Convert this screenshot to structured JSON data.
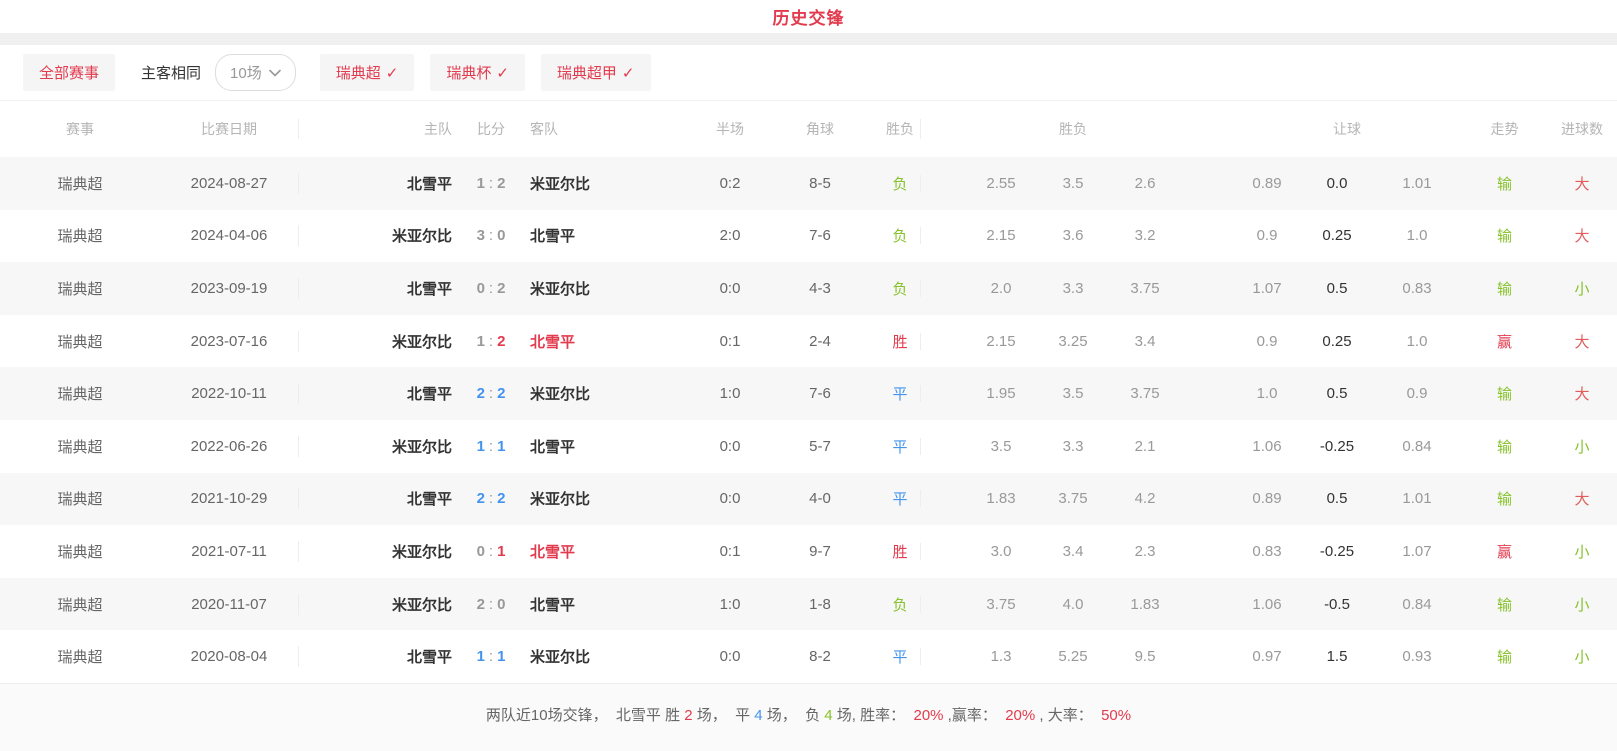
{
  "colors": {
    "accent_red": "#e23b4e",
    "draw_blue": "#4494ef",
    "lose_green": "#87c22b",
    "big_red": "#e25c5c",
    "score_gray": "#999999",
    "text_dark": "#333333",
    "text_mid": "#666666",
    "header_gray": "#b5b5b5"
  },
  "title": "历史交锋",
  "filter_bar": {
    "all_events": "全部赛事",
    "home_away_same": "主客相同",
    "match_count": "10场",
    "check_glyph": "✓",
    "league_filters": [
      "瑞典超",
      "瑞典杯",
      "瑞典超甲"
    ]
  },
  "table": {
    "headers": {
      "league": "赛事",
      "date": "比赛日期",
      "home": "主队",
      "score": "比分",
      "away": "客队",
      "half": "半场",
      "corner": "角球",
      "result": "胜负",
      "odds_group": "胜负",
      "handicap_group": "让球",
      "trend": "走势",
      "goals": "进球数"
    },
    "rows": [
      {
        "league": "瑞典超",
        "date": "2024-08-27",
        "home": {
          "name": "北雪平",
          "highlight": false
        },
        "score": {
          "home": "1",
          "sep": ":",
          "away": "2",
          "home_status": "normal",
          "away_status": "normal"
        },
        "away": {
          "name": "米亚尔比",
          "highlight": false
        },
        "half": "0:2",
        "corner": "8-5",
        "result": {
          "text": "负",
          "status": "lose"
        },
        "odds": [
          "2.55",
          "3.5",
          "2.6"
        ],
        "handicap": [
          "0.89",
          "0.0",
          "1.01"
        ],
        "trend": {
          "text": "输",
          "status": "lose"
        },
        "goals": {
          "text": "大",
          "status": "big"
        }
      },
      {
        "league": "瑞典超",
        "date": "2024-04-06",
        "home": {
          "name": "米亚尔比",
          "highlight": false
        },
        "score": {
          "home": "3",
          "sep": ":",
          "away": "0",
          "home_status": "normal",
          "away_status": "normal"
        },
        "away": {
          "name": "北雪平",
          "highlight": false
        },
        "half": "2:0",
        "corner": "7-6",
        "result": {
          "text": "负",
          "status": "lose"
        },
        "odds": [
          "2.15",
          "3.6",
          "3.2"
        ],
        "handicap": [
          "0.9",
          "0.25",
          "1.0"
        ],
        "trend": {
          "text": "输",
          "status": "lose"
        },
        "goals": {
          "text": "大",
          "status": "big"
        }
      },
      {
        "league": "瑞典超",
        "date": "2023-09-19",
        "home": {
          "name": "北雪平",
          "highlight": false
        },
        "score": {
          "home": "0",
          "sep": ":",
          "away": "2",
          "home_status": "normal",
          "away_status": "normal"
        },
        "away": {
          "name": "米亚尔比",
          "highlight": false
        },
        "half": "0:0",
        "corner": "4-3",
        "result": {
          "text": "负",
          "status": "lose"
        },
        "odds": [
          "2.0",
          "3.3",
          "3.75"
        ],
        "handicap": [
          "1.07",
          "0.5",
          "0.83"
        ],
        "trend": {
          "text": "输",
          "status": "lose"
        },
        "goals": {
          "text": "小",
          "status": "small"
        }
      },
      {
        "league": "瑞典超",
        "date": "2023-07-16",
        "home": {
          "name": "米亚尔比",
          "highlight": false
        },
        "score": {
          "home": "1",
          "sep": ":",
          "away": "2",
          "home_status": "normal",
          "away_status": "win"
        },
        "away": {
          "name": "北雪平",
          "highlight": true
        },
        "half": "0:1",
        "corner": "2-4",
        "result": {
          "text": "胜",
          "status": "win"
        },
        "odds": [
          "2.15",
          "3.25",
          "3.4"
        ],
        "handicap": [
          "0.9",
          "0.25",
          "1.0"
        ],
        "trend": {
          "text": "赢",
          "status": "win"
        },
        "goals": {
          "text": "大",
          "status": "big"
        }
      },
      {
        "league": "瑞典超",
        "date": "2022-10-11",
        "home": {
          "name": "北雪平",
          "highlight": false
        },
        "score": {
          "home": "2",
          "sep": ":",
          "away": "2",
          "home_status": "draw",
          "away_status": "draw"
        },
        "away": {
          "name": "米亚尔比",
          "highlight": false
        },
        "half": "1:0",
        "corner": "7-6",
        "result": {
          "text": "平",
          "status": "draw"
        },
        "odds": [
          "1.95",
          "3.5",
          "3.75"
        ],
        "handicap": [
          "1.0",
          "0.5",
          "0.9"
        ],
        "trend": {
          "text": "输",
          "status": "lose"
        },
        "goals": {
          "text": "大",
          "status": "big"
        }
      },
      {
        "league": "瑞典超",
        "date": "2022-06-26",
        "home": {
          "name": "米亚尔比",
          "highlight": false
        },
        "score": {
          "home": "1",
          "sep": ":",
          "away": "1",
          "home_status": "draw",
          "away_status": "draw"
        },
        "away": {
          "name": "北雪平",
          "highlight": false
        },
        "half": "0:0",
        "corner": "5-7",
        "result": {
          "text": "平",
          "status": "draw"
        },
        "odds": [
          "3.5",
          "3.3",
          "2.1"
        ],
        "handicap": [
          "1.06",
          "-0.25",
          "0.84"
        ],
        "trend": {
          "text": "输",
          "status": "lose"
        },
        "goals": {
          "text": "小",
          "status": "small"
        }
      },
      {
        "league": "瑞典超",
        "date": "2021-10-29",
        "home": {
          "name": "北雪平",
          "highlight": false
        },
        "score": {
          "home": "2",
          "sep": ":",
          "away": "2",
          "home_status": "draw",
          "away_status": "draw"
        },
        "away": {
          "name": "米亚尔比",
          "highlight": false
        },
        "half": "0:0",
        "corner": "4-0",
        "result": {
          "text": "平",
          "status": "draw"
        },
        "odds": [
          "1.83",
          "3.75",
          "4.2"
        ],
        "handicap": [
          "0.89",
          "0.5",
          "1.01"
        ],
        "trend": {
          "text": "输",
          "status": "lose"
        },
        "goals": {
          "text": "大",
          "status": "big"
        }
      },
      {
        "league": "瑞典超",
        "date": "2021-07-11",
        "home": {
          "name": "米亚尔比",
          "highlight": false
        },
        "score": {
          "home": "0",
          "sep": ":",
          "away": "1",
          "home_status": "normal",
          "away_status": "win"
        },
        "away": {
          "name": "北雪平",
          "highlight": true
        },
        "half": "0:1",
        "corner": "9-7",
        "result": {
          "text": "胜",
          "status": "win"
        },
        "odds": [
          "3.0",
          "3.4",
          "2.3"
        ],
        "handicap": [
          "0.83",
          "-0.25",
          "1.07"
        ],
        "trend": {
          "text": "赢",
          "status": "win"
        },
        "goals": {
          "text": "小",
          "status": "small"
        }
      },
      {
        "league": "瑞典超",
        "date": "2020-11-07",
        "home": {
          "name": "米亚尔比",
          "highlight": false
        },
        "score": {
          "home": "2",
          "sep": ":",
          "away": "0",
          "home_status": "normal",
          "away_status": "normal"
        },
        "away": {
          "name": "北雪平",
          "highlight": false
        },
        "half": "1:0",
        "corner": "1-8",
        "result": {
          "text": "负",
          "status": "lose"
        },
        "odds": [
          "3.75",
          "4.0",
          "1.83"
        ],
        "handicap": [
          "1.06",
          "-0.5",
          "0.84"
        ],
        "trend": {
          "text": "输",
          "status": "lose"
        },
        "goals": {
          "text": "小",
          "status": "small"
        }
      },
      {
        "league": "瑞典超",
        "date": "2020-08-04",
        "home": {
          "name": "北雪平",
          "highlight": false
        },
        "score": {
          "home": "1",
          "sep": ":",
          "away": "1",
          "home_status": "draw",
          "away_status": "draw"
        },
        "away": {
          "name": "米亚尔比",
          "highlight": false
        },
        "half": "0:0",
        "corner": "8-2",
        "result": {
          "text": "平",
          "status": "draw"
        },
        "odds": [
          "1.3",
          "5.25",
          "9.5"
        ],
        "handicap": [
          "0.97",
          "1.5",
          "0.93"
        ],
        "trend": {
          "text": "输",
          "status": "lose"
        },
        "goals": {
          "text": "小",
          "status": "small"
        }
      }
    ]
  },
  "footer": {
    "segments": [
      {
        "text": "两队近10场交锋，  北雪平 胜 ",
        "color": "gray"
      },
      {
        "text": "2",
        "color": "accent_red"
      },
      {
        "text": " 场，  平 ",
        "color": "gray"
      },
      {
        "text": "4",
        "color": "draw_blue"
      },
      {
        "text": " 场，  负 ",
        "color": "gray"
      },
      {
        "text": "4",
        "color": "lose_green"
      },
      {
        "text": " 场, 胜率：  ",
        "color": "gray"
      },
      {
        "text": "20%",
        "color": "accent_red"
      },
      {
        "text": " ,赢率：  ",
        "color": "gray"
      },
      {
        "text": "20%",
        "color": "accent_red"
      },
      {
        "text": " , 大率：  ",
        "color": "gray"
      },
      {
        "text": "50%",
        "color": "accent_red"
      }
    ]
  }
}
